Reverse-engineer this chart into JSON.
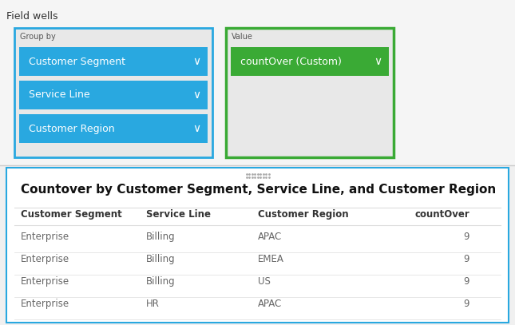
{
  "field_wells_label": "Field wells",
  "group_by_label": "Group by",
  "group_by_items": [
    "Customer Segment",
    "Service Line",
    "Customer Region"
  ],
  "value_label": "Value",
  "value_item": "countOver (Custom)",
  "table_title": "Countover by Customer Segment, Service Line, and Customer Region",
  "table_headers": [
    "Customer Segment",
    "Service Line",
    "Customer Region",
    "countOver"
  ],
  "table_rows": [
    [
      "Enterprise",
      "Billing",
      "APAC",
      "9"
    ],
    [
      "Enterprise",
      "Billing",
      "EMEA",
      "9"
    ],
    [
      "Enterprise",
      "Billing",
      "US",
      "9"
    ],
    [
      "Enterprise",
      "HR",
      "APAC",
      "9"
    ]
  ],
  "bg_color": "#f5f5f5",
  "top_section_bg": "#f5f5f5",
  "group_by_box_border": "#29a8e0",
  "value_box_border": "#3aaa35",
  "dropdown_bg": "#29a8e0",
  "dropdown_text": "#ffffff",
  "value_dropdown_bg": "#3aaa35",
  "value_dropdown_text": "#ffffff",
  "label_color": "#555555",
  "table_bg": "#ffffff",
  "table_border": "#29a8e0",
  "header_text_color": "#333333",
  "row_text_color": "#666666",
  "divider_color": "#dddddd",
  "dots_color": "#aaaaaa",
  "bottom_section_bg": "#ffffff",
  "sep_line_color": "#cccccc",
  "gb_box_bg": "#e8e8e8",
  "vb_box_bg": "#e8e8e8"
}
